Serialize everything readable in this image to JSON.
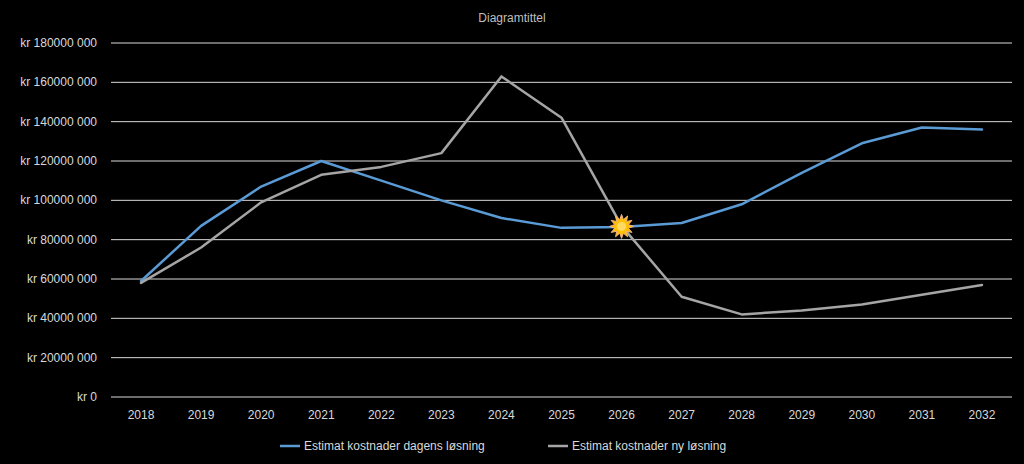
{
  "chart_data": {
    "type": "line",
    "title": "Diagramtittel",
    "categories": [
      "2018",
      "2019",
      "2020",
      "2021",
      "2022",
      "2023",
      "2024",
      "2025",
      "2026",
      "2027",
      "2028",
      "2029",
      "2030",
      "2031",
      "2032"
    ],
    "series": [
      {
        "name": "Estimat kostnader dagens løsning",
        "color": "#5b9bd5",
        "values": [
          59000000,
          87000000,
          107000000,
          120000000,
          110000000,
          100000000,
          91000000,
          86000000,
          86500000,
          88500000,
          98000000,
          114000000,
          129000000,
          137000000,
          136000000
        ]
      },
      {
        "name": "Estimat kostnader ny løsning",
        "color": "#a5a5a5",
        "values": [
          58000000,
          76000000,
          99000000,
          113000000,
          117000000,
          124000000,
          163000000,
          142000000,
          87000000,
          51000000,
          42000000,
          44000000,
          47000000,
          52000000,
          57000000
        ]
      }
    ],
    "ylim": [
      0,
      180000000
    ],
    "yticks": [
      {
        "value": 0,
        "label": "kr 0"
      },
      {
        "value": 20000000,
        "label": "kr 20000 000"
      },
      {
        "value": 40000000,
        "label": "kr 40000 000"
      },
      {
        "value": 60000000,
        "label": "kr 60000 000"
      },
      {
        "value": 80000000,
        "label": "kr 80000 000"
      },
      {
        "value": 100000000,
        "label": "kr 100000 000"
      },
      {
        "value": 120000000,
        "label": "kr 120000 000"
      },
      {
        "value": 140000000,
        "label": "kr 140000 000"
      },
      {
        "value": 160000000,
        "label": "kr 160000 000"
      },
      {
        "value": 180000000,
        "label": "kr 180000 000"
      }
    ],
    "grid": true,
    "legend": "bottom"
  }
}
